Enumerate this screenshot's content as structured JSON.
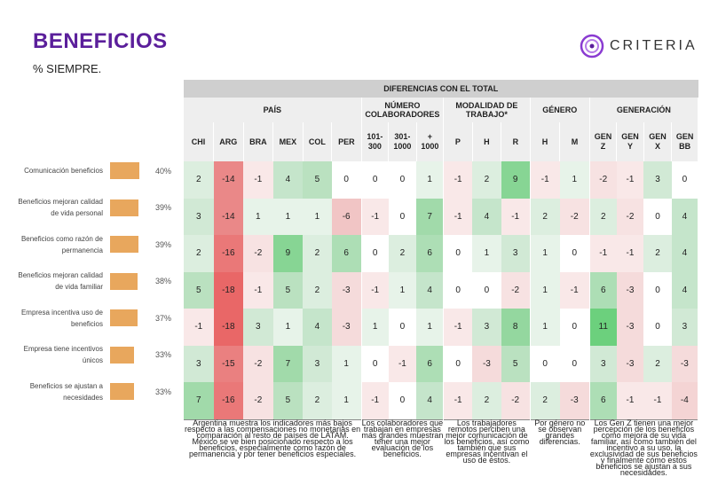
{
  "header": {
    "title": "BENEFICIOS",
    "subtitle": "% SIEMPRE.",
    "logo_text": "CRITERIA"
  },
  "table": {
    "super_header": "DIFERENCIAS CON EL TOTAL",
    "groups": [
      {
        "label": "PAÍS",
        "span": 6
      },
      {
        "label": "NÚMERO\nCOLABORADORES",
        "span": 3
      },
      {
        "label": "MODALIDAD DE\nTRABAJO*",
        "span": 3
      },
      {
        "label": "GÉNERO",
        "span": 2
      },
      {
        "label": "GENERACIÓN",
        "span": 4
      }
    ],
    "columns": [
      "CHI",
      "ARG",
      "BRA",
      "MEX",
      "COL",
      "PER",
      "101-\n300",
      "301-\n1000",
      "+\n1000",
      "P",
      "H",
      "R",
      "H",
      "M",
      "GEN\nZ",
      "GEN\nY",
      "GEN\nX",
      "GEN\nBB"
    ],
    "rows": [
      {
        "label": "Comunicación beneficios",
        "pct_label": "40%",
        "pct": 40,
        "values": [
          2,
          -14,
          -1,
          4,
          5,
          0,
          0,
          0,
          1,
          -1,
          2,
          9,
          -1,
          1,
          -2,
          -1,
          3,
          0
        ]
      },
      {
        "label": "Beneficios mejoran calidad de vida personal",
        "pct_label": "39%",
        "pct": 39,
        "values": [
          3,
          -14,
          1,
          1,
          1,
          -6,
          -1,
          0,
          7,
          -1,
          4,
          -1,
          2,
          -2,
          2,
          -2,
          0,
          4
        ]
      },
      {
        "label": "Beneficios como razón de permanencia",
        "pct_label": "39%",
        "pct": 39,
        "values": [
          2,
          -16,
          -2,
          9,
          2,
          6,
          0,
          2,
          6,
          0,
          1,
          3,
          1,
          0,
          -1,
          -1,
          2,
          4
        ]
      },
      {
        "label": "Beneficios mejoran calidad de vida familiar",
        "pct_label": "38%",
        "pct": 38,
        "values": [
          5,
          -18,
          -1,
          5,
          2,
          -3,
          -1,
          1,
          4,
          0,
          0,
          -2,
          1,
          -1,
          6,
          -3,
          0,
          4
        ]
      },
      {
        "label": "Empresa incentiva uso de beneficios",
        "pct_label": "37%",
        "pct": 37,
        "values": [
          -1,
          -18,
          3,
          1,
          4,
          -3,
          1,
          0,
          1,
          -1,
          3,
          8,
          1,
          0,
          11,
          -3,
          0,
          3
        ]
      },
      {
        "label": "Empresa tiene incentivos únicos",
        "pct_label": "33%",
        "pct": 33,
        "values": [
          3,
          -15,
          -2,
          7,
          3,
          1,
          0,
          -1,
          6,
          0,
          -3,
          5,
          0,
          0,
          3,
          -3,
          2,
          -3
        ]
      },
      {
        "label": "Beneficios se ajustan a necesidades",
        "pct_label": "33%",
        "pct": 33,
        "values": [
          7,
          -16,
          -2,
          5,
          2,
          1,
          -1,
          0,
          4,
          -1,
          2,
          -2,
          2,
          -3,
          6,
          -1,
          -1,
          -4
        ]
      }
    ],
    "notes": [
      "Argentina muestra los indicadores más bajos respecto a las compensaciones no monetarias en comparación al resto de países de LATAM.\nMéxico se ve bien posicionado respecto a los beneficios, especialmente como razón de permanencia y por tener beneficios especiales.",
      "Los colaboradores que trabajan en empresas más grandes muestran tener una mejor evaluación de los beneficios.",
      "Los trabajadores remotos perciben una mejor comunicación de los beneficios, así como también que sus empresas incentivan el uso de éstos.",
      "Por género no se observan grandes diferencias.",
      "Los Gen Z tienen una mejor percepción de los beneficios como mejora de su vida familiar, así como también del incentivo a su uso, la exclusividad de sus beneficios y finalmente cómo estos beneficios se ajustan a sus necesidades."
    ]
  },
  "colors": {
    "positive": "#3f9b4f",
    "negative": "#e34a4a",
    "bar": "#e8a75d",
    "title": "#5b1f9b"
  }
}
